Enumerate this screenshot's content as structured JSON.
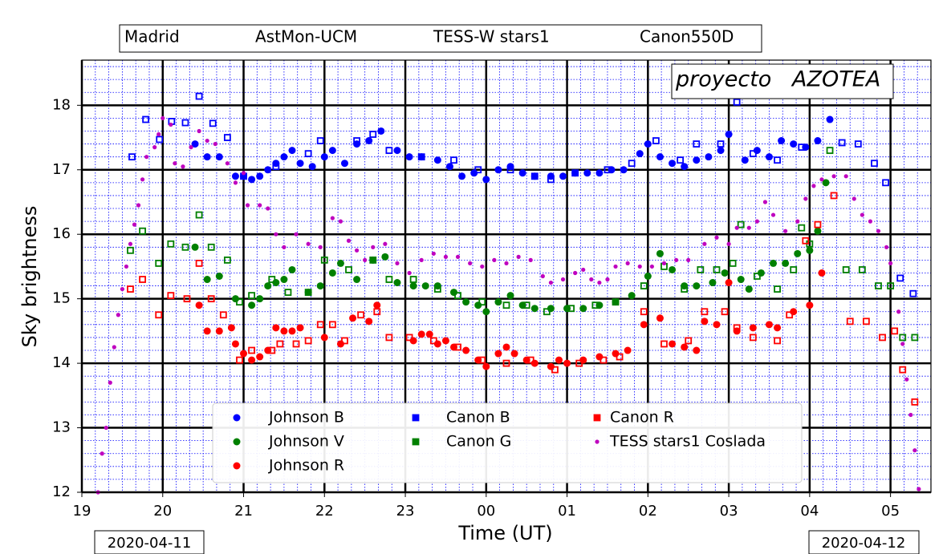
{
  "chart_data": {
    "type": "scatter",
    "header": [
      "Madrid",
      "AstMon-UCM",
      "TESS-W stars1",
      "Canon550D"
    ],
    "annotation": "proyecto   AZOTEA",
    "xlabel": "Time (UT)",
    "ylabel": "Sky brightness",
    "date_labels": [
      "2020-04-11",
      "2020-04-12"
    ],
    "xlim": [
      19,
      29.5
    ],
    "ylim": [
      12,
      18.7
    ],
    "xticks": [
      19,
      20,
      21,
      22,
      23,
      {
        "value": 24,
        "label": "00"
      },
      {
        "value": 25,
        "label": "01"
      },
      {
        "value": 26,
        "label": "02"
      },
      {
        "value": 27,
        "label": "03"
      },
      {
        "value": 28,
        "label": "04"
      },
      {
        "value": 29,
        "label": "05"
      }
    ],
    "yticks": [
      12,
      13,
      14,
      15,
      16,
      17,
      18
    ],
    "grid": true,
    "minor_grid": true,
    "legend": "lower center",
    "series": [
      {
        "name": "Johnson B",
        "color": "#0000ff",
        "marker": "circle",
        "x": [
          20.4,
          20.55,
          20.7,
          20.9,
          21.0,
          21.1,
          21.2,
          21.3,
          21.4,
          21.5,
          21.6,
          21.7,
          21.85,
          22.0,
          22.1,
          22.25,
          22.4,
          22.55,
          22.7,
          22.9,
          23.05,
          23.2,
          23.4,
          23.55,
          23.7,
          23.85,
          24.0,
          24.15,
          24.3,
          24.45,
          24.6,
          24.8,
          24.95,
          25.1,
          25.25,
          25.4,
          25.55,
          25.7,
          25.9,
          26.0,
          26.15,
          26.3,
          26.45,
          26.6,
          26.75,
          26.9,
          27.0,
          27.2,
          27.35,
          27.5,
          27.65,
          27.8,
          27.95,
          28.1,
          28.25
        ],
        "values": [
          17.4,
          17.2,
          17.2,
          16.9,
          16.9,
          16.85,
          16.9,
          17.0,
          17.1,
          17.2,
          17.3,
          17.1,
          17.05,
          17.2,
          17.3,
          17.1,
          17.4,
          17.45,
          17.6,
          17.3,
          17.2,
          17.2,
          17.15,
          17.05,
          16.9,
          16.95,
          16.85,
          17.0,
          17.05,
          16.95,
          16.9,
          16.9,
          16.9,
          16.95,
          16.95,
          16.95,
          17.0,
          17.0,
          17.25,
          17.4,
          17.2,
          17.1,
          17.05,
          17.15,
          17.2,
          17.3,
          17.55,
          17.15,
          17.3,
          17.2,
          17.45,
          17.4,
          17.35,
          17.45,
          17.78
        ]
      },
      {
        "name": "Johnson V",
        "color": "#008000",
        "marker": "circle",
        "x": [
          20.4,
          20.55,
          20.7,
          20.9,
          21.1,
          21.2,
          21.3,
          21.4,
          21.5,
          21.6,
          21.8,
          21.95,
          22.1,
          22.2,
          22.4,
          22.6,
          22.75,
          22.9,
          23.1,
          23.25,
          23.4,
          23.6,
          23.75,
          23.9,
          24.0,
          24.15,
          24.3,
          24.45,
          24.6,
          24.8,
          25.0,
          25.2,
          25.4,
          25.6,
          25.8,
          26.0,
          26.15,
          26.3,
          26.45,
          26.6,
          26.8,
          26.95,
          27.15,
          27.25,
          27.4,
          27.55,
          27.7,
          27.85,
          28.0,
          28.1,
          28.2
        ],
        "values": [
          15.8,
          15.3,
          15.35,
          15.0,
          14.9,
          15.0,
          15.2,
          15.25,
          15.3,
          15.45,
          15.1,
          15.2,
          15.4,
          15.55,
          15.3,
          15.6,
          15.65,
          15.25,
          15.2,
          15.2,
          15.2,
          15.1,
          14.95,
          14.9,
          14.8,
          14.95,
          15.05,
          14.9,
          14.85,
          14.85,
          14.85,
          14.85,
          14.9,
          14.95,
          15.05,
          15.35,
          15.7,
          15.45,
          15.2,
          15.2,
          15.25,
          15.4,
          15.3,
          15.15,
          15.4,
          15.55,
          15.55,
          15.7,
          15.75,
          16.05,
          16.8
        ]
      },
      {
        "name": "Johnson R",
        "color": "#ff0000",
        "marker": "circle",
        "x": [
          20.45,
          20.55,
          20.7,
          20.85,
          20.9,
          21.0,
          21.1,
          21.2,
          21.3,
          21.4,
          21.5,
          21.6,
          21.7,
          22.0,
          22.2,
          22.35,
          22.55,
          22.65,
          23.1,
          23.2,
          23.3,
          23.4,
          23.5,
          23.6,
          23.75,
          23.9,
          24.0,
          24.15,
          24.25,
          24.35,
          24.5,
          24.6,
          24.8,
          24.9,
          25.0,
          25.2,
          25.4,
          25.6,
          25.75,
          25.95,
          26.15,
          26.3,
          26.45,
          26.6,
          26.7,
          26.85,
          27.0,
          27.1,
          27.3,
          27.5,
          27.6,
          27.8,
          28.0,
          28.15
        ],
        "values": [
          14.9,
          14.5,
          14.5,
          14.55,
          14.3,
          14.15,
          14.05,
          14.1,
          14.2,
          14.55,
          14.5,
          14.5,
          14.55,
          14.4,
          14.3,
          14.7,
          14.65,
          14.9,
          14.35,
          14.45,
          14.45,
          14.3,
          14.35,
          14.25,
          14.2,
          14.05,
          13.95,
          14.15,
          14.25,
          14.15,
          14.05,
          14.0,
          13.95,
          14.05,
          14.0,
          14.05,
          14.1,
          14.15,
          14.2,
          14.6,
          14.7,
          14.3,
          14.25,
          14.2,
          14.65,
          14.6,
          15.25,
          14.5,
          14.55,
          14.6,
          14.55,
          14.8,
          14.9,
          15.4
        ]
      },
      {
        "name": "Canon B",
        "color": "#0000ff",
        "marker": "square",
        "x": [
          19.62,
          19.79,
          19.96,
          20.11,
          20.28,
          20.45,
          20.62,
          20.8,
          21.0,
          21.4,
          21.8,
          21.95,
          22.4,
          22.6,
          22.8,
          23.2,
          23.6,
          23.9,
          24.3,
          24.6,
          24.8,
          25.1,
          25.5,
          25.8,
          26.1,
          26.4,
          26.6,
          26.9,
          27.1,
          27.3,
          27.6,
          27.9,
          28.4,
          28.6,
          28.8,
          28.94,
          29.12,
          29.28
        ],
        "values": [
          17.2,
          17.78,
          17.47,
          17.75,
          17.73,
          18.14,
          17.72,
          17.5,
          16.9,
          17.05,
          17.25,
          17.45,
          17.45,
          17.55,
          17.3,
          17.2,
          17.15,
          17.0,
          17.0,
          16.9,
          16.85,
          16.95,
          17.0,
          17.1,
          17.45,
          17.15,
          17.4,
          17.4,
          18.05,
          17.25,
          17.15,
          17.35,
          17.42,
          17.4,
          17.1,
          16.8,
          15.32,
          15.08
        ]
      },
      {
        "name": "Canon G",
        "color": "#008000",
        "marker": "square",
        "x": [
          19.6,
          19.75,
          19.95,
          20.1,
          20.28,
          20.45,
          20.6,
          20.8,
          20.95,
          21.1,
          21.35,
          21.55,
          21.8,
          22.0,
          22.3,
          22.6,
          22.8,
          23.1,
          23.4,
          23.65,
          23.95,
          24.25,
          24.5,
          24.75,
          25.05,
          25.35,
          25.6,
          25.95,
          26.2,
          26.45,
          26.65,
          26.85,
          27.05,
          27.15,
          27.35,
          27.6,
          27.8,
          27.9,
          28.0,
          28.25,
          28.45,
          28.65,
          28.85,
          29.0,
          29.15,
          29.3
        ],
        "values": [
          15.75,
          16.05,
          15.55,
          15.85,
          15.8,
          16.3,
          15.8,
          15.6,
          14.95,
          15.05,
          15.3,
          15.1,
          15.1,
          15.6,
          15.45,
          15.6,
          15.3,
          15.3,
          15.15,
          15.05,
          14.95,
          14.9,
          14.9,
          14.8,
          14.85,
          14.9,
          14.95,
          15.2,
          15.5,
          15.15,
          15.45,
          15.45,
          15.55,
          16.15,
          15.35,
          15.15,
          15.45,
          16.1,
          15.85,
          17.3,
          15.45,
          15.45,
          15.2,
          15.2,
          14.4,
          14.4
        ]
      },
      {
        "name": "Canon R",
        "color": "#ff0000",
        "marker": "square",
        "x": [
          19.6,
          19.75,
          19.95,
          20.1,
          20.3,
          20.45,
          20.6,
          20.75,
          20.95,
          21.1,
          21.35,
          21.45,
          21.65,
          21.8,
          21.95,
          22.1,
          22.25,
          22.45,
          22.65,
          22.8,
          23.05,
          23.35,
          23.65,
          23.95,
          24.25,
          24.55,
          24.85,
          25.15,
          25.45,
          25.65,
          25.95,
          26.2,
          26.5,
          26.7,
          26.95,
          27.1,
          27.3,
          27.6,
          27.75,
          27.95,
          28.1,
          28.3,
          28.5,
          28.7,
          28.9,
          29.05,
          29.15,
          29.3
        ],
        "values": [
          15.15,
          15.3,
          14.75,
          15.05,
          15.0,
          15.55,
          15.0,
          14.75,
          14.05,
          14.2,
          14.2,
          14.3,
          14.3,
          14.35,
          14.6,
          14.6,
          14.35,
          14.75,
          14.8,
          14.4,
          14.4,
          14.35,
          14.25,
          14.05,
          14.0,
          14.05,
          13.9,
          14.0,
          14.05,
          14.1,
          14.8,
          14.3,
          14.35,
          14.8,
          14.8,
          14.55,
          14.4,
          14.35,
          14.75,
          15.9,
          16.15,
          16.6,
          14.65,
          14.65,
          14.4,
          14.5,
          13.9,
          13.4
        ]
      },
      {
        "name": "TESS stars1 Coslada",
        "color": "#bf00bf",
        "marker": "dot",
        "x": [
          19.2,
          19.25,
          19.3,
          19.35,
          19.4,
          19.45,
          19.5,
          19.55,
          19.6,
          19.65,
          19.7,
          19.75,
          19.8,
          19.9,
          19.95,
          20.0,
          20.1,
          20.15,
          20.25,
          20.35,
          20.45,
          20.55,
          20.65,
          20.8,
          20.9,
          21.0,
          21.05,
          21.2,
          21.3,
          21.4,
          21.5,
          21.65,
          21.8,
          21.95,
          22.1,
          22.2,
          22.3,
          22.4,
          22.5,
          22.6,
          22.75,
          22.9,
          23.05,
          23.2,
          23.35,
          23.5,
          23.65,
          23.8,
          23.95,
          24.1,
          24.25,
          24.4,
          24.55,
          24.7,
          24.8,
          24.95,
          25.1,
          25.2,
          25.3,
          25.4,
          25.5,
          25.6,
          25.75,
          25.9,
          26.05,
          26.2,
          26.35,
          26.5,
          26.7,
          26.85,
          27.0,
          27.1,
          27.25,
          27.35,
          27.45,
          27.55,
          27.7,
          27.85,
          27.95,
          28.05,
          28.15,
          28.3,
          28.45,
          28.55,
          28.65,
          28.75,
          28.85,
          28.95,
          29.0,
          29.1,
          29.15,
          29.2,
          29.25,
          29.3,
          29.35
        ],
        "values": [
          12.0,
          12.6,
          13.0,
          13.7,
          14.25,
          14.75,
          15.15,
          15.5,
          15.85,
          16.15,
          16.45,
          16.85,
          17.2,
          17.35,
          17.55,
          17.8,
          17.7,
          17.1,
          17.05,
          17.35,
          17.6,
          17.45,
          17.4,
          17.1,
          16.8,
          16.95,
          16.45,
          16.45,
          16.4,
          16.0,
          15.8,
          16.0,
          15.85,
          15.8,
          16.25,
          16.2,
          15.9,
          15.75,
          15.6,
          15.8,
          15.85,
          15.55,
          15.4,
          15.6,
          15.7,
          15.65,
          15.65,
          15.55,
          15.5,
          15.6,
          15.55,
          15.65,
          15.6,
          15.35,
          15.25,
          15.3,
          15.4,
          15.45,
          15.3,
          15.25,
          15.3,
          15.5,
          15.55,
          15.5,
          15.5,
          15.55,
          15.6,
          15.6,
          15.85,
          15.95,
          15.85,
          16.1,
          16.1,
          16.2,
          16.5,
          16.3,
          16.05,
          16.2,
          16.55,
          16.75,
          16.85,
          16.9,
          16.9,
          16.55,
          16.3,
          16.2,
          16.05,
          15.8,
          15.55,
          14.8,
          14.3,
          13.75,
          13.2,
          12.65,
          12.05
        ]
      }
    ]
  }
}
